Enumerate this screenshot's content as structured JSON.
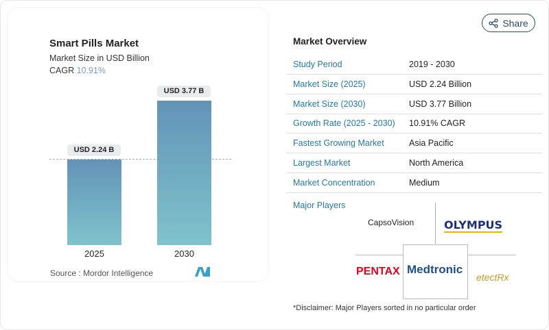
{
  "chart": {
    "title": "Smart Pills Market",
    "subtitle": "Market Size in USD Billion",
    "cagr_label": "CAGR",
    "cagr_value": "10.91%",
    "source_label": "Source :",
    "source_value": "Mordor Intelligence"
  },
  "chart_data": {
    "type": "bar",
    "title": "Smart Pills Market",
    "ylabel": "Market Size in USD Billion",
    "categories": [
      "2025",
      "2030"
    ],
    "values": [
      2.24,
      3.77
    ],
    "data_labels": [
      "USD 2.24 B",
      "USD 3.77 B"
    ],
    "ylim": [
      0,
      3.77
    ]
  },
  "share_label": "Share",
  "overview": {
    "title": "Market Overview",
    "rows": [
      {
        "k": "Study Period",
        "v": "2019 - 2030"
      },
      {
        "k": "Market Size (2025)",
        "v": "USD 2.24 Billion"
      },
      {
        "k": "Market Size (2030)",
        "v": "USD 3.77 Billion"
      },
      {
        "k": "Growth Rate (2025 - 2030)",
        "v": "10.91% CAGR"
      },
      {
        "k": "Fastest Growing Market",
        "v": "Asia Pacific"
      },
      {
        "k": "Largest Market",
        "v": "North America"
      },
      {
        "k": "Market Concentration",
        "v": "Medium"
      }
    ]
  },
  "players": {
    "title": "Major Players",
    "logos": [
      "CapsoVision",
      "OLYMPUS",
      "PENTAX",
      "Medtronic",
      "etectRx"
    ]
  },
  "disclaimer": "*Disclaimer: Major Players sorted in no particular order"
}
